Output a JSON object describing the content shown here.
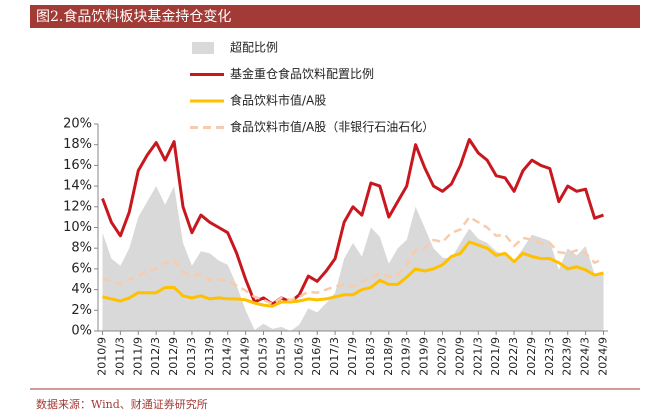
{
  "chart_data": {
    "type": "line",
    "title": "图2.食品饮料板块基金持仓变化",
    "source": "数据来源：Wind、财通证券研究所",
    "categories": [
      "2010/9",
      null,
      "2011/3",
      null,
      "2011/9",
      null,
      "2012/3",
      null,
      "2012/9",
      null,
      "2013/3",
      null,
      "2013/9",
      null,
      "2014/3",
      null,
      "2014/9",
      null,
      "2015/3",
      null,
      "2015/9",
      null,
      "2016/3",
      null,
      "2016/9",
      null,
      "2017/3",
      null,
      "2017/9",
      null,
      "2018/3",
      null,
      "2018/9",
      null,
      "2019/3",
      null,
      "2019/9",
      null,
      "2020/3",
      null,
      "2020/9",
      null,
      "2021/3",
      null,
      "2021/9",
      null,
      "2022/3",
      null,
      "2022/9",
      null,
      "2023/3",
      null,
      "2023/9",
      null,
      "2024/3",
      null,
      "2024/9"
    ],
    "series": [
      {
        "name": "超配比例",
        "style": "area",
        "color": "#d9d9d9",
        "values": [
          9.5,
          7,
          6.3,
          8,
          11,
          12.5,
          14,
          12.2,
          14,
          8.5,
          6.3,
          7.7,
          7.5,
          6.8,
          6.4,
          4.4,
          2,
          0.1,
          0.7,
          0.2,
          0.4,
          0,
          0.6,
          2.2,
          1.8,
          2.7,
          3.7,
          7,
          8.5,
          7.2,
          10,
          9.1,
          6.5,
          8,
          8.8,
          12,
          10,
          8,
          7.1,
          7,
          8.5,
          9.9,
          8.9,
          8.5,
          7.7,
          7.3,
          6.8,
          8,
          9.3,
          9,
          8.7,
          5.9,
          8,
          7.3,
          8.2,
          5.5,
          5.6
        ]
      },
      {
        "name": "基金重仓食品饮料配置比例",
        "style": "line",
        "color": "#c8171e",
        "values": [
          12.8,
          10.5,
          9.2,
          11.5,
          15.5,
          17,
          18.2,
          16.5,
          18.3,
          12,
          9.5,
          11.2,
          10.5,
          10,
          9.5,
          7.5,
          5,
          2.8,
          3.2,
          2.6,
          3.2,
          2.8,
          3.5,
          5.3,
          4.8,
          5.8,
          7,
          10.5,
          12,
          11.2,
          14.3,
          14,
          11,
          12.5,
          14,
          18,
          15.8,
          14,
          13.5,
          14.2,
          16,
          18.5,
          17.2,
          16.5,
          15,
          14.8,
          13.5,
          15.5,
          16.5,
          16,
          15.7,
          12.5,
          14,
          13.5,
          13.7,
          10.9,
          11.2
        ]
      },
      {
        "name": "食品饮料市值/A股",
        "style": "line",
        "color": "#ffc000",
        "values": [
          3.3,
          3.1,
          2.9,
          3.2,
          3.7,
          3.7,
          3.7,
          4.2,
          4.2,
          3.4,
          3.2,
          3.4,
          3.1,
          3.2,
          3.1,
          3.1,
          3.0,
          2.7,
          2.5,
          2.4,
          2.8,
          2.8,
          2.9,
          3.1,
          3.0,
          3.1,
          3.3,
          3.5,
          3.5,
          4.0,
          4.2,
          4.9,
          4.5,
          4.5,
          5.2,
          6.0,
          5.8,
          6.0,
          6.4,
          7.2,
          7.5,
          8.6,
          8.3,
          8.0,
          7.3,
          7.5,
          6.7,
          7.5,
          7.2,
          7.0,
          7.0,
          6.6,
          6.0,
          6.2,
          5.9,
          5.4,
          5.6
        ]
      },
      {
        "name": "食品饮料市值/A股（非银行石油石化）",
        "style": "dashed",
        "color": "#f8cbad",
        "values": [
          5.0,
          4.8,
          4.5,
          5.0,
          5.3,
          5.8,
          6.0,
          6.6,
          6.8,
          5.7,
          5.3,
          5.5,
          4.9,
          5.0,
          4.8,
          4.4,
          3.9,
          3.3,
          3.0,
          2.6,
          3.2,
          3.0,
          3.3,
          3.8,
          3.7,
          4.0,
          4.3,
          4.5,
          4.3,
          4.8,
          5.0,
          5.6,
          5.2,
          5.5,
          6.4,
          7.8,
          8.0,
          8.8,
          8.6,
          9.5,
          9.8,
          11.0,
          10.5,
          10.0,
          9.2,
          9.3,
          8.2,
          9.0,
          8.8,
          8.5,
          8.5,
          7.6,
          7.5,
          7.8,
          7.5,
          6.6,
          7.0
        ]
      }
    ],
    "ylim": [
      0,
      20
    ],
    "yticks": [
      {
        "value": 0,
        "label": "0%"
      },
      {
        "value": 2,
        "label": "2%"
      },
      {
        "value": 4,
        "label": "4%"
      },
      {
        "value": 6,
        "label": "6%"
      },
      {
        "value": 8,
        "label": "8%"
      },
      {
        "value": 10,
        "label": "10%"
      },
      {
        "value": 12,
        "label": "12%"
      },
      {
        "value": 14,
        "label": "14%"
      },
      {
        "value": 16,
        "label": "16%"
      },
      {
        "value": 18,
        "label": "18%"
      },
      {
        "value": 20,
        "label": "20%"
      }
    ]
  }
}
